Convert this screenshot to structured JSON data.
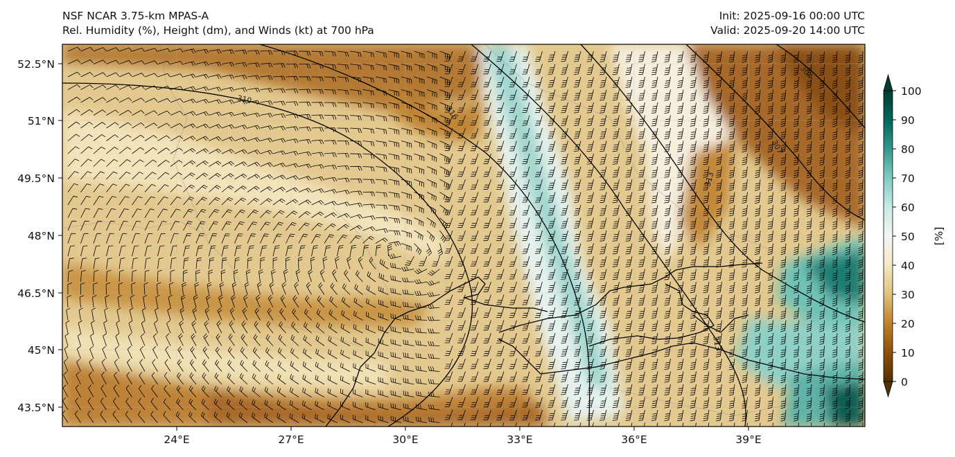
{
  "header": {
    "title_line1": "NSF NCAR 3.75-km MPAS-A",
    "title_line2": "Rel. Humidity (%), Height (dm), and Winds (kt) at 700 hPa",
    "init": "Init: 2025-09-16 00:00 UTC",
    "valid": "Valid: 2025-09-20 14:00 UTC"
  },
  "map": {
    "projection": "PlateCarree",
    "lon_range": [
      21.0,
      42.0
    ],
    "lat_range": [
      42.9,
      52.9
    ],
    "lat_ticks": [
      {
        "value": 52.5,
        "label": "52.5°N"
      },
      {
        "value": 51.0,
        "label": "51°N"
      },
      {
        "value": 49.5,
        "label": "49.5°N"
      },
      {
        "value": 48.0,
        "label": "48°N"
      },
      {
        "value": 46.5,
        "label": "46.5°N"
      },
      {
        "value": 45.0,
        "label": "45°N"
      },
      {
        "value": 43.5,
        "label": "43.5°N"
      }
    ],
    "lon_ticks": [
      {
        "value": 24,
        "label": "24°E"
      },
      {
        "value": 27,
        "label": "27°E"
      },
      {
        "value": 30,
        "label": "30°E"
      },
      {
        "value": 33,
        "label": "33°E"
      },
      {
        "value": 36,
        "label": "36°E"
      },
      {
        "value": 39,
        "label": "39°E"
      }
    ],
    "height_contour_labels": [
      "310",
      "316",
      "307",
      "313",
      "304",
      "313"
    ],
    "colors": {
      "very_dry": "#8c510a",
      "dry": "#bf812d",
      "moist_light": "#dfc27d",
      "neutral": "#f6e8c3",
      "white": "#f5f5f5",
      "moist": "#c7eae5",
      "wet": "#80cdc1",
      "very_wet": "#35978f",
      "saturated": "#01665e"
    }
  },
  "colorbar": {
    "unit_label": "[%]",
    "ticks": [
      "0",
      "10",
      "20",
      "30",
      "40",
      "50",
      "60",
      "70",
      "80",
      "90",
      "100"
    ],
    "colors": [
      "#543005",
      "#8c510a",
      "#bf812d",
      "#dfc27d",
      "#f6e8c3",
      "#f5f5f5",
      "#c7eae5",
      "#80cdc1",
      "#35978f",
      "#01665e",
      "#003c30"
    ]
  }
}
